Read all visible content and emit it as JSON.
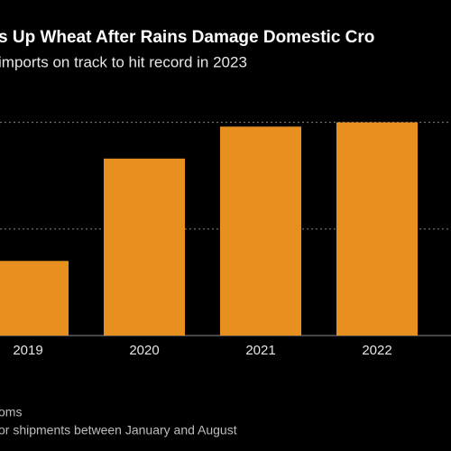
{
  "chart_data": {
    "type": "bar",
    "title": "s Up Wheat After Rains Damage Domestic Cro",
    "subtitle": "imports on track to hit record in 2023",
    "categories": [
      "2019",
      "2020",
      "2021",
      "2022"
    ],
    "values": [
      3.5,
      8.3,
      9.8,
      10.0
    ],
    "color": "#e8901f",
    "ylim": [
      0,
      11
    ],
    "yticks": [
      0,
      5,
      10
    ],
    "grid": true,
    "source": "oms",
    "note": "or shipments between January and August"
  }
}
